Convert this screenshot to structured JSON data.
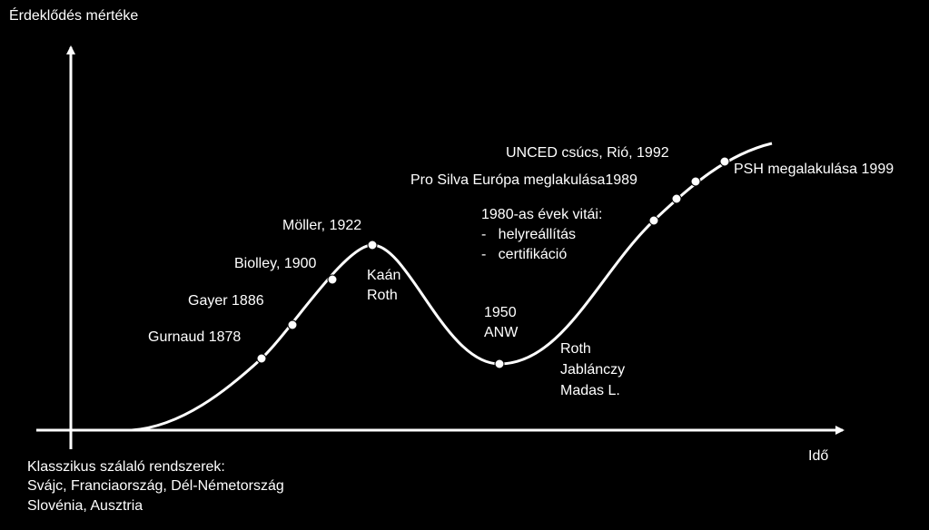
{
  "y_axis_label": "Érdeklődés mértéke",
  "x_axis_label": "Idő",
  "bottom_note": [
    "Klasszikus szálaló rendszerek:",
    "Svájc, Franciaország, Dél-Németország",
    "Slovénia, Ausztria"
  ],
  "annotations": [
    {
      "lines": [
        "Gurnaud 1878"
      ]
    },
    {
      "lines": [
        "Gayer 1886"
      ]
    },
    {
      "lines": [
        "Biolley, 1900"
      ]
    },
    {
      "lines": [
        "Möller, 1922"
      ]
    },
    {
      "lines": [
        "Kaán",
        "Roth"
      ]
    },
    {
      "lines": [
        "1950",
        "ANW"
      ]
    },
    {
      "lines": [
        "Roth",
        "Jablánczy",
        "Madas L."
      ]
    },
    {
      "lines": [
        "1980-as évek vitái:",
        "-   helyreállítás",
        "-   certifikáció"
      ]
    },
    {
      "lines": [
        "Pro Silva Európa meglakulása1989"
      ]
    },
    {
      "lines": [
        "UNCED csúcs, Rió, 1992"
      ]
    },
    {
      "lines": [
        "PSH megalakulása 1999"
      ]
    }
  ]
}
